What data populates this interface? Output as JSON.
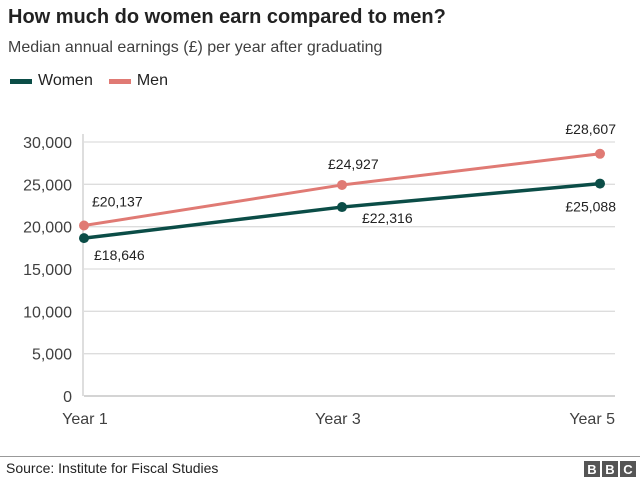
{
  "chart_data": {
    "type": "line",
    "title": "How much do women earn compared to men?",
    "subtitle": "Median annual earnings (£) per year after graduating",
    "categories": [
      "Year 1",
      "Year 3",
      "Year 5"
    ],
    "x": [
      1,
      3,
      5
    ],
    "series": [
      {
        "name": "Women",
        "color": "#0b4d47",
        "values": [
          18646,
          22316,
          25088
        ],
        "labels": [
          "£18,646",
          "£22,316",
          "£25,088"
        ]
      },
      {
        "name": "Men",
        "color": "#e07a74",
        "values": [
          20137,
          24927,
          28607
        ],
        "labels": [
          "£20,137",
          "£24,927",
          "£28,607"
        ]
      }
    ],
    "yticks": [
      0,
      5000,
      10000,
      15000,
      20000,
      25000,
      30000
    ],
    "ytick_labels": [
      "0",
      "5,000",
      "10,000",
      "15,000",
      "20,000",
      "25,000",
      "30,000"
    ],
    "ylim": [
      0,
      30000
    ],
    "xlabel": "",
    "ylabel": "",
    "grid": true,
    "legend": "top-left"
  },
  "footer": {
    "source": "Source: Institute for Fiscal Studies",
    "logo": [
      "B",
      "B",
      "C"
    ]
  }
}
